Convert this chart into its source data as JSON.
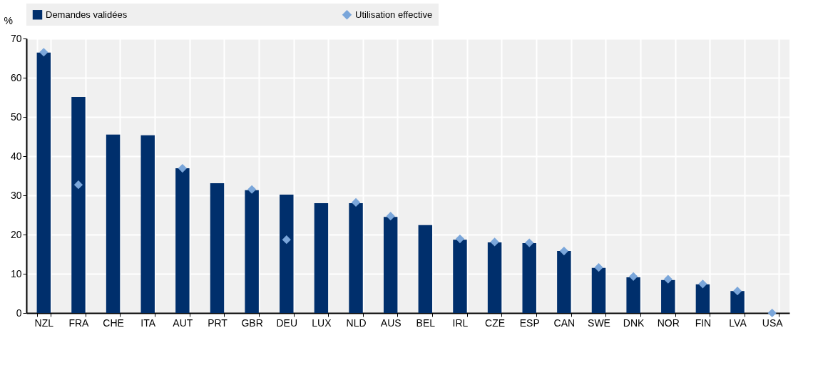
{
  "chart_data": {
    "type": "bar",
    "ylabel": "%",
    "categories": [
      "NZL",
      "FRA",
      "CHE",
      "ITA",
      "AUT",
      "PRT",
      "GBR",
      "DEU",
      "LUX",
      "NLD",
      "AUS",
      "BEL",
      "IRL",
      "CZE",
      "ESP",
      "CAN",
      "SWE",
      "DNK",
      "NOR",
      "FIN",
      "LVA",
      "USA"
    ],
    "series": [
      {
        "name": "Demandes validées",
        "color": "#002f6c",
        "values": [
          66.4,
          55.1,
          45.5,
          45.3,
          36.9,
          33.1,
          31.3,
          30.2,
          28.0,
          28.0,
          24.5,
          22.4,
          18.7,
          18.0,
          17.8,
          15.8,
          11.5,
          9.1,
          8.4,
          7.3,
          5.6,
          0
        ]
      },
      {
        "name": "Utilisation effective",
        "type": "scatter",
        "marker": "diamond",
        "color": "#7aa6da",
        "values": [
          66.5,
          32.7,
          null,
          null,
          36.9,
          null,
          31.5,
          18.7,
          null,
          28.2,
          24.7,
          null,
          18.9,
          18.1,
          17.9,
          15.8,
          11.6,
          9.3,
          8.6,
          7.4,
          5.6,
          0
        ]
      }
    ],
    "ylim": [
      0,
      70
    ],
    "yticks": [
      0,
      10,
      20,
      30,
      40,
      50,
      60,
      70
    ],
    "grid": true,
    "legend": "top"
  }
}
